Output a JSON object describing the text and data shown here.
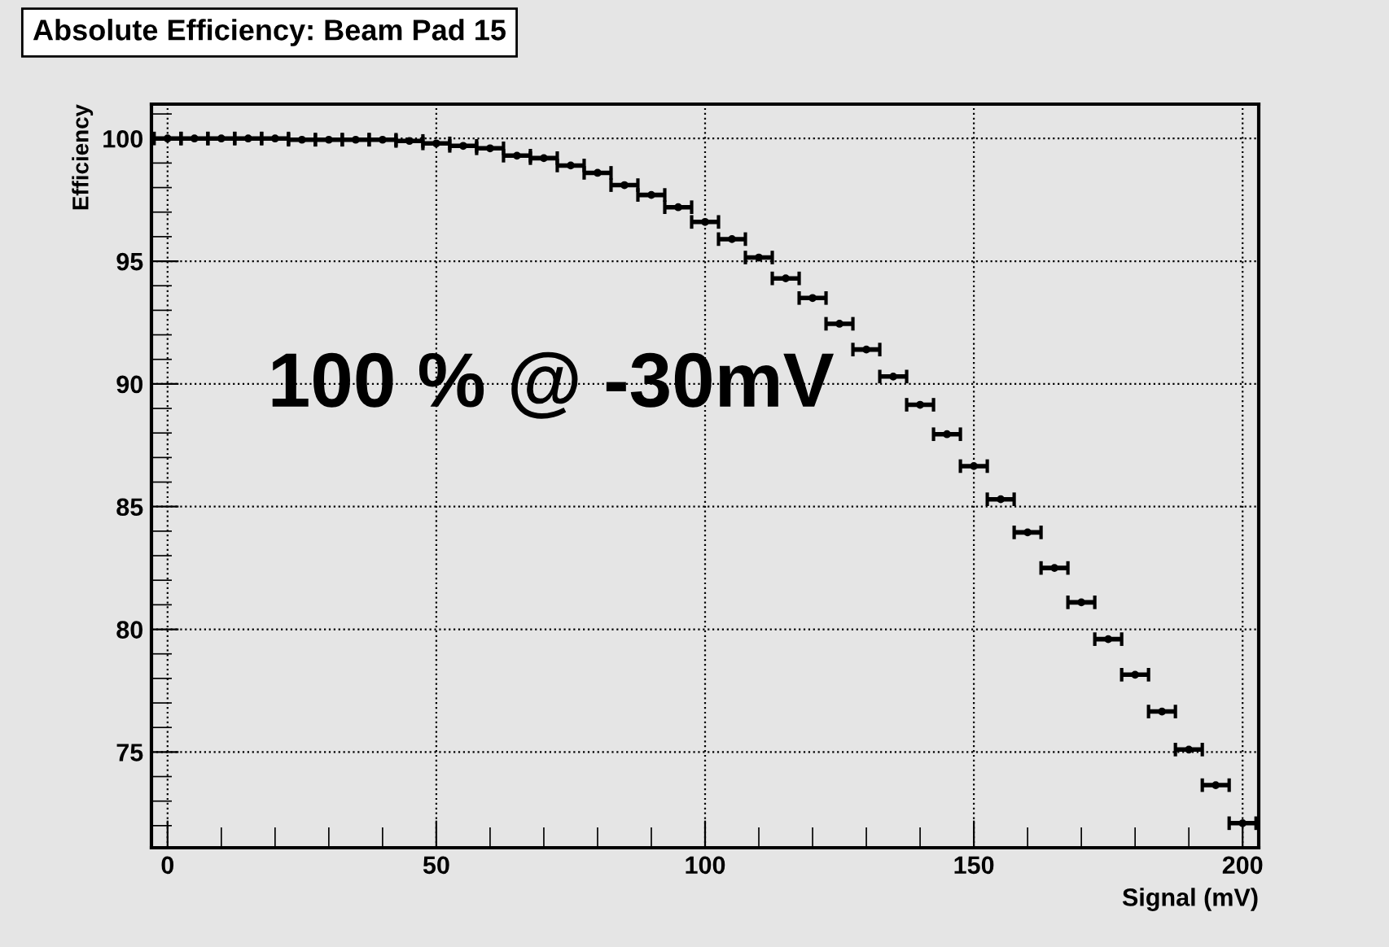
{
  "chart_data": {
    "type": "scatter",
    "title": "Absolute Efficiency: Beam Pad 15",
    "xlabel": "Signal (mV)",
    "ylabel": "Efficiency",
    "annotations": [
      "100 % @ -30mV"
    ],
    "x": [
      0,
      5,
      10,
      15,
      20,
      25,
      30,
      35,
      40,
      45,
      50,
      55,
      60,
      65,
      70,
      75,
      80,
      85,
      90,
      95,
      100,
      105,
      110,
      115,
      120,
      125,
      130,
      135,
      140,
      145,
      150,
      155,
      160,
      165,
      170,
      175,
      180,
      185,
      190,
      195,
      200
    ],
    "series": [
      {
        "color": "#000000",
        "values": [
          100.0,
          100.0,
          100.0,
          100.0,
          100.0,
          99.95,
          99.95,
          99.95,
          99.95,
          99.9,
          99.8,
          99.7,
          99.6,
          99.3,
          99.2,
          98.9,
          98.6,
          98.1,
          97.7,
          97.2,
          96.6,
          95.9,
          95.15,
          94.3,
          93.5,
          92.45,
          91.4,
          90.3,
          89.15,
          87.95,
          86.65,
          85.3,
          83.95,
          82.5,
          81.1,
          79.6,
          78.15,
          76.65,
          75.1,
          73.65,
          72.1
        ],
        "xerrors": [
          2.5,
          2.5,
          2.5,
          2.5,
          2.5,
          2.5,
          2.5,
          2.5,
          2.5,
          2.5,
          2.5,
          2.5,
          2.5,
          2.5,
          2.5,
          2.5,
          2.5,
          2.5,
          2.5,
          2.5,
          2.5,
          2.5,
          2.5,
          2.5,
          2.5,
          2.5,
          2.5,
          2.5,
          2.5,
          2.5,
          2.5,
          2.5,
          2.5,
          2.5,
          2.5,
          2.5,
          2.5,
          2.5,
          2.5,
          2.5,
          2.5
        ]
      }
    ],
    "marker": "circle",
    "xlim": [
      -3,
      203
    ],
    "ylim": [
      71.1,
      101.4
    ],
    "xticks": [
      0,
      50,
      100,
      150,
      200
    ],
    "yticks": [
      75,
      80,
      85,
      90,
      95,
      100
    ],
    "grid": true
  }
}
